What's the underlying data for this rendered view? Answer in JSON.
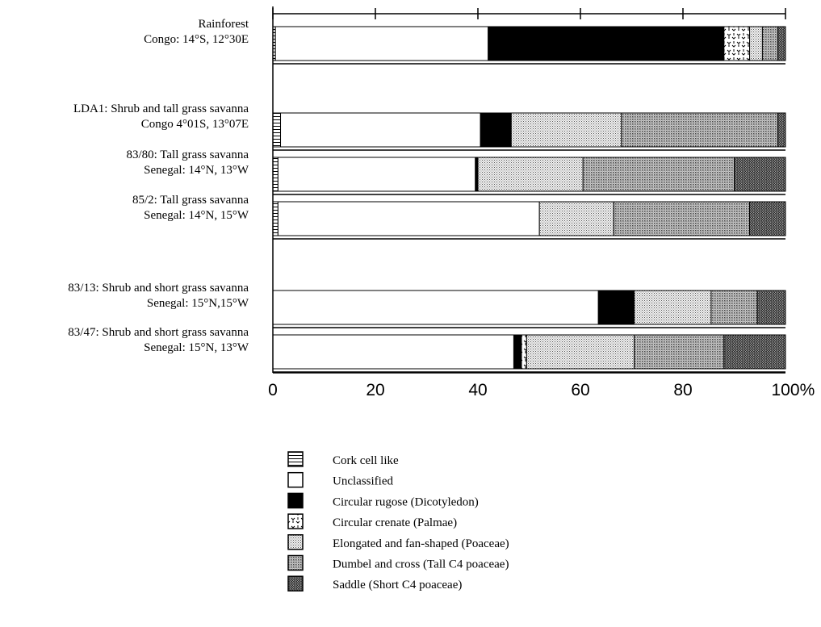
{
  "chart_data": {
    "type": "bar",
    "orientation": "horizontal",
    "stacked": true,
    "xlim": [
      0,
      100
    ],
    "x_ticks": [
      "0",
      "20",
      "40",
      "60",
      "80",
      "100"
    ],
    "x_unit": "%",
    "categories": [
      [
        "Rainforest",
        "Congo: 14°S, 12°30E"
      ],
      [
        "LDA1: Shrub and tall grass savanna",
        "Congo   4°01S, 13°07E"
      ],
      [
        "83/80: Tall grass savanna",
        "Senegal: 14°N, 13°W"
      ],
      [
        "85/2: Tall grass savanna",
        "Senegal: 14°N, 15°W"
      ],
      [
        "83/13: Shrub and short grass savanna",
        "Senegal: 15°N,15°W"
      ],
      [
        "83/47: Shrub and short grass savanna",
        "Senegal: 15°N, 13°W"
      ]
    ],
    "series": [
      {
        "name": "Cork cell like",
        "pattern": "cork",
        "values": [
          0.5,
          1.5,
          1,
          1,
          0,
          0
        ]
      },
      {
        "name": "Unclassified",
        "pattern": "white",
        "values": [
          41.5,
          39,
          38.5,
          51,
          63.5,
          47
        ]
      },
      {
        "name": "Circular rugose (Dicotyledon)",
        "pattern": "black",
        "values": [
          46,
          6,
          0.5,
          0,
          7,
          1.5
        ]
      },
      {
        "name": "Circular crenate (Palmae)",
        "pattern": "crenate",
        "values": [
          5,
          0,
          0,
          0,
          0,
          1
        ]
      },
      {
        "name": "Elongated and fan-shaped (Poaceae)",
        "pattern": "light",
        "values": [
          2.5,
          21.5,
          20.5,
          14.5,
          15,
          21
        ]
      },
      {
        "name": "Dumbel and cross (Tall C4 poaceae)",
        "pattern": "medium",
        "values": [
          3,
          30.5,
          29.5,
          26.5,
          9,
          17.5
        ]
      },
      {
        "name": "Saddle (Short C4 poaceae)",
        "pattern": "dark",
        "values": [
          1.5,
          1.5,
          10,
          7,
          5.5,
          12
        ]
      }
    ]
  }
}
